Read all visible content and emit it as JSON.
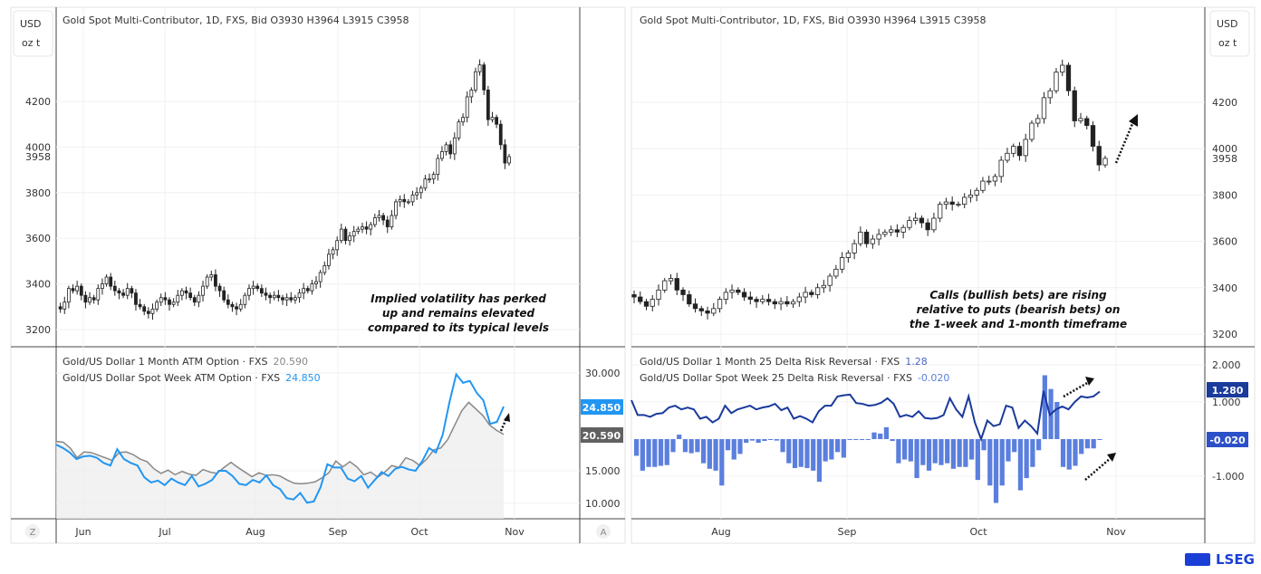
{
  "colors": {
    "candle_up": "#ffffff",
    "candle_down": "#222222",
    "atm_1m": "#888888",
    "atm_week": "#2196f3",
    "rr_1m": "#1a3a9c",
    "rr_week": "#5b7fde",
    "brand": "#1a3fd6"
  },
  "left": {
    "unit_top": "USD",
    "unit_bottom": "oz t",
    "legend": "Gold Spot Multi-Contributor, 1D, FXS, Bid  O3930  H3964  L3915  C3958",
    "annotation": [
      "Implied volatility has perked",
      "up and remains elevated",
      "compared to its typical levels"
    ],
    "lower_legend": [
      {
        "label": "Gold/US Dollar 1 Month ATM Option · FXS",
        "value": "20.590"
      },
      {
        "label": "Gold/US Dollar Spot Week ATM Option · FXS",
        "value": "24.850"
      }
    ],
    "lower_badges": [
      "24.850",
      "20.590"
    ],
    "z_button": "Z",
    "a_button": "A"
  },
  "right": {
    "legend": "Gold Spot Multi-Contributor, 1D, FXS, Bid  O3930  H3964  L3915  C3958",
    "unit_top": "USD",
    "unit_bottom": "oz t",
    "annotation": [
      "Calls (bullish bets) are rising",
      "relative to puts (bearish bets) on",
      "the 1-week and 1-month timeframe"
    ],
    "lower_legend": [
      {
        "label": "Gold/US Dollar 1 Month 25 Delta Risk Reversal · FXS",
        "value": "1.28"
      },
      {
        "label": "Gold/US Dollar Spot Week 25 Delta Risk Reversal · FXS",
        "value": "-0.020"
      }
    ],
    "lower_badges": [
      "1.280",
      "-0.020"
    ]
  },
  "logo": "LSEG",
  "chart_data": [
    {
      "type": "candlestick",
      "title": "Gold Spot Multi-Contributor, 1D, FXS, Bid",
      "ohlc_last": {
        "open": 3930,
        "high": 3964,
        "low": 3915,
        "close": 3958
      },
      "yticks": [
        3200,
        3400,
        3600,
        3800,
        4000,
        4200
      ],
      "last_label": "3958",
      "xticks": [
        "Jun",
        "Jul",
        "Aug",
        "Sep",
        "Oct",
        "Nov"
      ],
      "close": [
        3300,
        3290,
        3320,
        3380,
        3370,
        3390,
        3350,
        3320,
        3340,
        3330,
        3380,
        3400,
        3430,
        3390,
        3370,
        3360,
        3350,
        3380,
        3360,
        3310,
        3300,
        3280,
        3270,
        3290,
        3320,
        3340,
        3330,
        3310,
        3320,
        3350,
        3370,
        3360,
        3340,
        3320,
        3350,
        3390,
        3430,
        3440,
        3390,
        3370,
        3330,
        3310,
        3300,
        3290,
        3310,
        3350,
        3380,
        3390,
        3380,
        3360,
        3350,
        3340,
        3350,
        3340,
        3330,
        3340,
        3330,
        3340,
        3360,
        3380,
        3370,
        3400,
        3410,
        3450,
        3480,
        3530,
        3550,
        3590,
        3640,
        3590,
        3610,
        3630,
        3640,
        3650,
        3640,
        3660,
        3690,
        3700,
        3680,
        3650,
        3700,
        3760,
        3770,
        3760,
        3760,
        3790,
        3800,
        3820,
        3860,
        3860,
        3880,
        3950,
        3980,
        4010,
        3970,
        4040,
        4110,
        4130,
        4220,
        4250,
        4330,
        4360,
        4250,
        4120,
        4130,
        4100,
        4010,
        3930,
        3958
      ]
    },
    {
      "type": "line",
      "series": [
        {
          "name": "Gold/US Dollar 1 Month ATM Option · FXS",
          "values": [
            19.5,
            19.4,
            18.5,
            17,
            17.9,
            17.8,
            17.4,
            17,
            16.6,
            17.8,
            17.9,
            17.5,
            16.8,
            16.4,
            15.3,
            14.6,
            15.1,
            14.4,
            14.9,
            14.5,
            14.3,
            15.2,
            14.8,
            14.6,
            15.5,
            16.3,
            15.5,
            14.8,
            14.1,
            14.7,
            14.3,
            14.4,
            14.2,
            13.6,
            13.1,
            13,
            13.1,
            13.3,
            13.9,
            14.7,
            16.5,
            15.6,
            16.4,
            15.6,
            14.4,
            14.8,
            14,
            14.8,
            15.8,
            15.5,
            17,
            16.6,
            15.8,
            16.8,
            18.2,
            18.5,
            19.8,
            22,
            24.2,
            25.5,
            24.5,
            23.5,
            22,
            21.2,
            20.59
          ]
        },
        {
          "name": "Gold/US Dollar Spot Week ATM Option · FXS",
          "values": [
            19,
            18.5,
            17.8,
            16.8,
            17.2,
            17.3,
            17,
            16.2,
            15.8,
            18.3,
            16.8,
            16.2,
            15.8,
            14,
            13.2,
            13.5,
            12.8,
            13.8,
            13.2,
            12.8,
            14.2,
            12.6,
            13,
            13.6,
            15,
            15,
            14.2,
            13,
            12.8,
            13.6,
            13.2,
            14.3,
            12.8,
            12.2,
            10.8,
            10.6,
            11.6,
            10.1,
            10.3,
            12.5,
            16,
            15.5,
            15.5,
            13.8,
            13.4,
            14.2,
            12.4,
            13.6,
            14.8,
            14.2,
            15.3,
            15.6,
            15.2,
            15,
            16.5,
            18.5,
            17.8,
            20.5,
            25.5,
            29.8,
            28.5,
            28.8,
            27,
            25.8,
            22.2,
            22.5,
            24.85
          ]
        }
      ],
      "yticks": [
        10,
        15,
        30
      ],
      "xticks": [
        "Jun",
        "Jul",
        "Aug",
        "Sep",
        "Oct",
        "Nov"
      ]
    },
    {
      "type": "line+bar",
      "series": [
        {
          "name": "Gold/US Dollar 1 Month 25 Delta Risk Reversal · FXS",
          "type": "line",
          "values": [
            1.05,
            0.65,
            0.65,
            0.6,
            0.68,
            0.7,
            0.85,
            0.9,
            0.8,
            0.85,
            0.8,
            0.55,
            0.6,
            0.45,
            0.55,
            0.9,
            0.7,
            0.8,
            0.85,
            0.9,
            0.8,
            0.85,
            0.88,
            0.95,
            0.78,
            0.85,
            0.55,
            0.62,
            0.55,
            0.45,
            0.75,
            0.9,
            0.9,
            1.15,
            1.18,
            1.2,
            0.97,
            0.95,
            0.9,
            0.92,
            0.98,
            1.1,
            0.95,
            0.6,
            0.65,
            0.6,
            0.75,
            0.57,
            0.55,
            0.57,
            0.65,
            1.1,
            0.8,
            0.6,
            1.15,
            0.45,
            0.0,
            0.5,
            0.35,
            0.4,
            0.9,
            0.85,
            0.3,
            0.5,
            0.35,
            0.15,
            1.3,
            0.65,
            0.8,
            0.88,
            0.8,
            1.0,
            1.15,
            1.12,
            1.15,
            1.28
          ]
        },
        {
          "name": "Gold/US Dollar Spot Week 25 Delta Risk Reversal · FXS",
          "type": "bar",
          "values": [
            -0.45,
            -0.85,
            -0.75,
            -0.75,
            -0.72,
            -0.7,
            -0.35,
            0.12,
            -0.35,
            -0.38,
            -0.35,
            -0.65,
            -0.8,
            -0.85,
            -1.25,
            -0.3,
            -0.55,
            -0.4,
            -0.1,
            -0.04,
            -0.1,
            -0.05,
            -0.02,
            -0.04,
            -0.35,
            -0.65,
            -0.78,
            -0.75,
            -0.78,
            -0.85,
            -1.15,
            -0.6,
            -0.55,
            -0.35,
            -0.5,
            -0.02,
            -0.02,
            -0.02,
            -0.02,
            0.18,
            0.15,
            0.32,
            -0.05,
            -0.65,
            -0.55,
            -0.6,
            -1.05,
            -0.7,
            -0.85,
            -0.65,
            -0.7,
            -0.65,
            -0.8,
            -0.75,
            -0.75,
            -0.55,
            -1.1,
            -0.3,
            -1.25,
            -1.72,
            -1.25,
            -0.6,
            -0.35,
            -1.38,
            -1.05,
            -0.75,
            -0.3,
            1.72,
            1.35,
            1.0,
            -0.75,
            -0.82,
            -0.72,
            -0.4,
            -0.25,
            -0.25,
            -0.02
          ]
        }
      ],
      "yticks": [
        -1,
        1,
        2
      ],
      "xticks": [
        "Aug",
        "Sep",
        "Oct",
        "Nov"
      ]
    }
  ]
}
